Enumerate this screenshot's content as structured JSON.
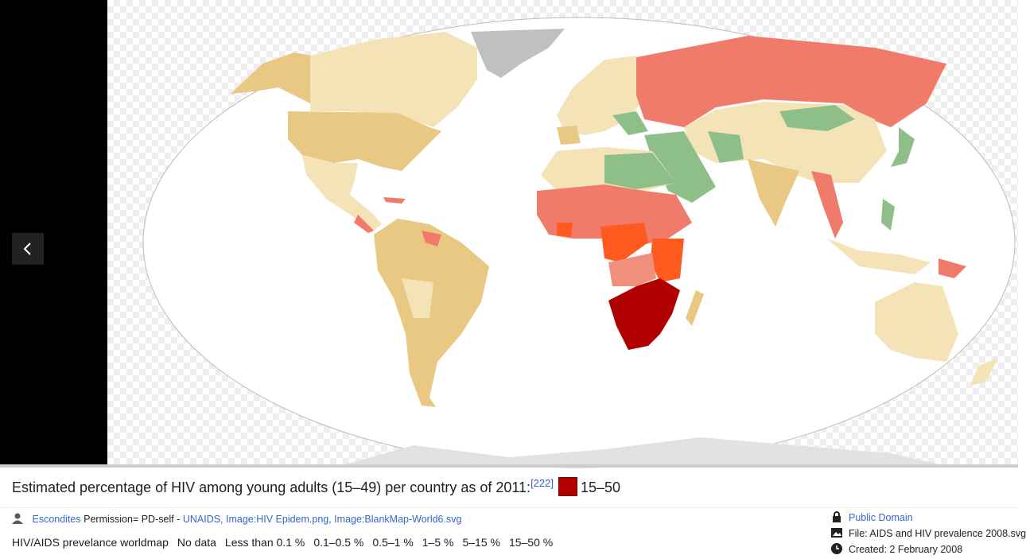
{
  "caption": {
    "text": "Estimated percentage of HIV among young adults (15–49) per country as of 2011:",
    "ref": "[222]",
    "legend": "15–50"
  },
  "meta": {
    "author": "Escondites",
    "permission": "Permission= PD-self -",
    "source": "UNAIDS, Image:HIV Epidem.png, Image:BlankMap-World6.svg",
    "description": "HIV/AIDS prevelance worldmap",
    "legend_items": [
      "No data",
      "Less than 0.1 %",
      "0.1–0.5 %",
      "0.5–1 %",
      "1–5 %",
      "5–15 %",
      "15–50 %"
    ],
    "license": "Public Domain",
    "file": "File: AIDS and HIV prevalence 2008.svg",
    "created": "Created: 2 February 2008"
  }
}
